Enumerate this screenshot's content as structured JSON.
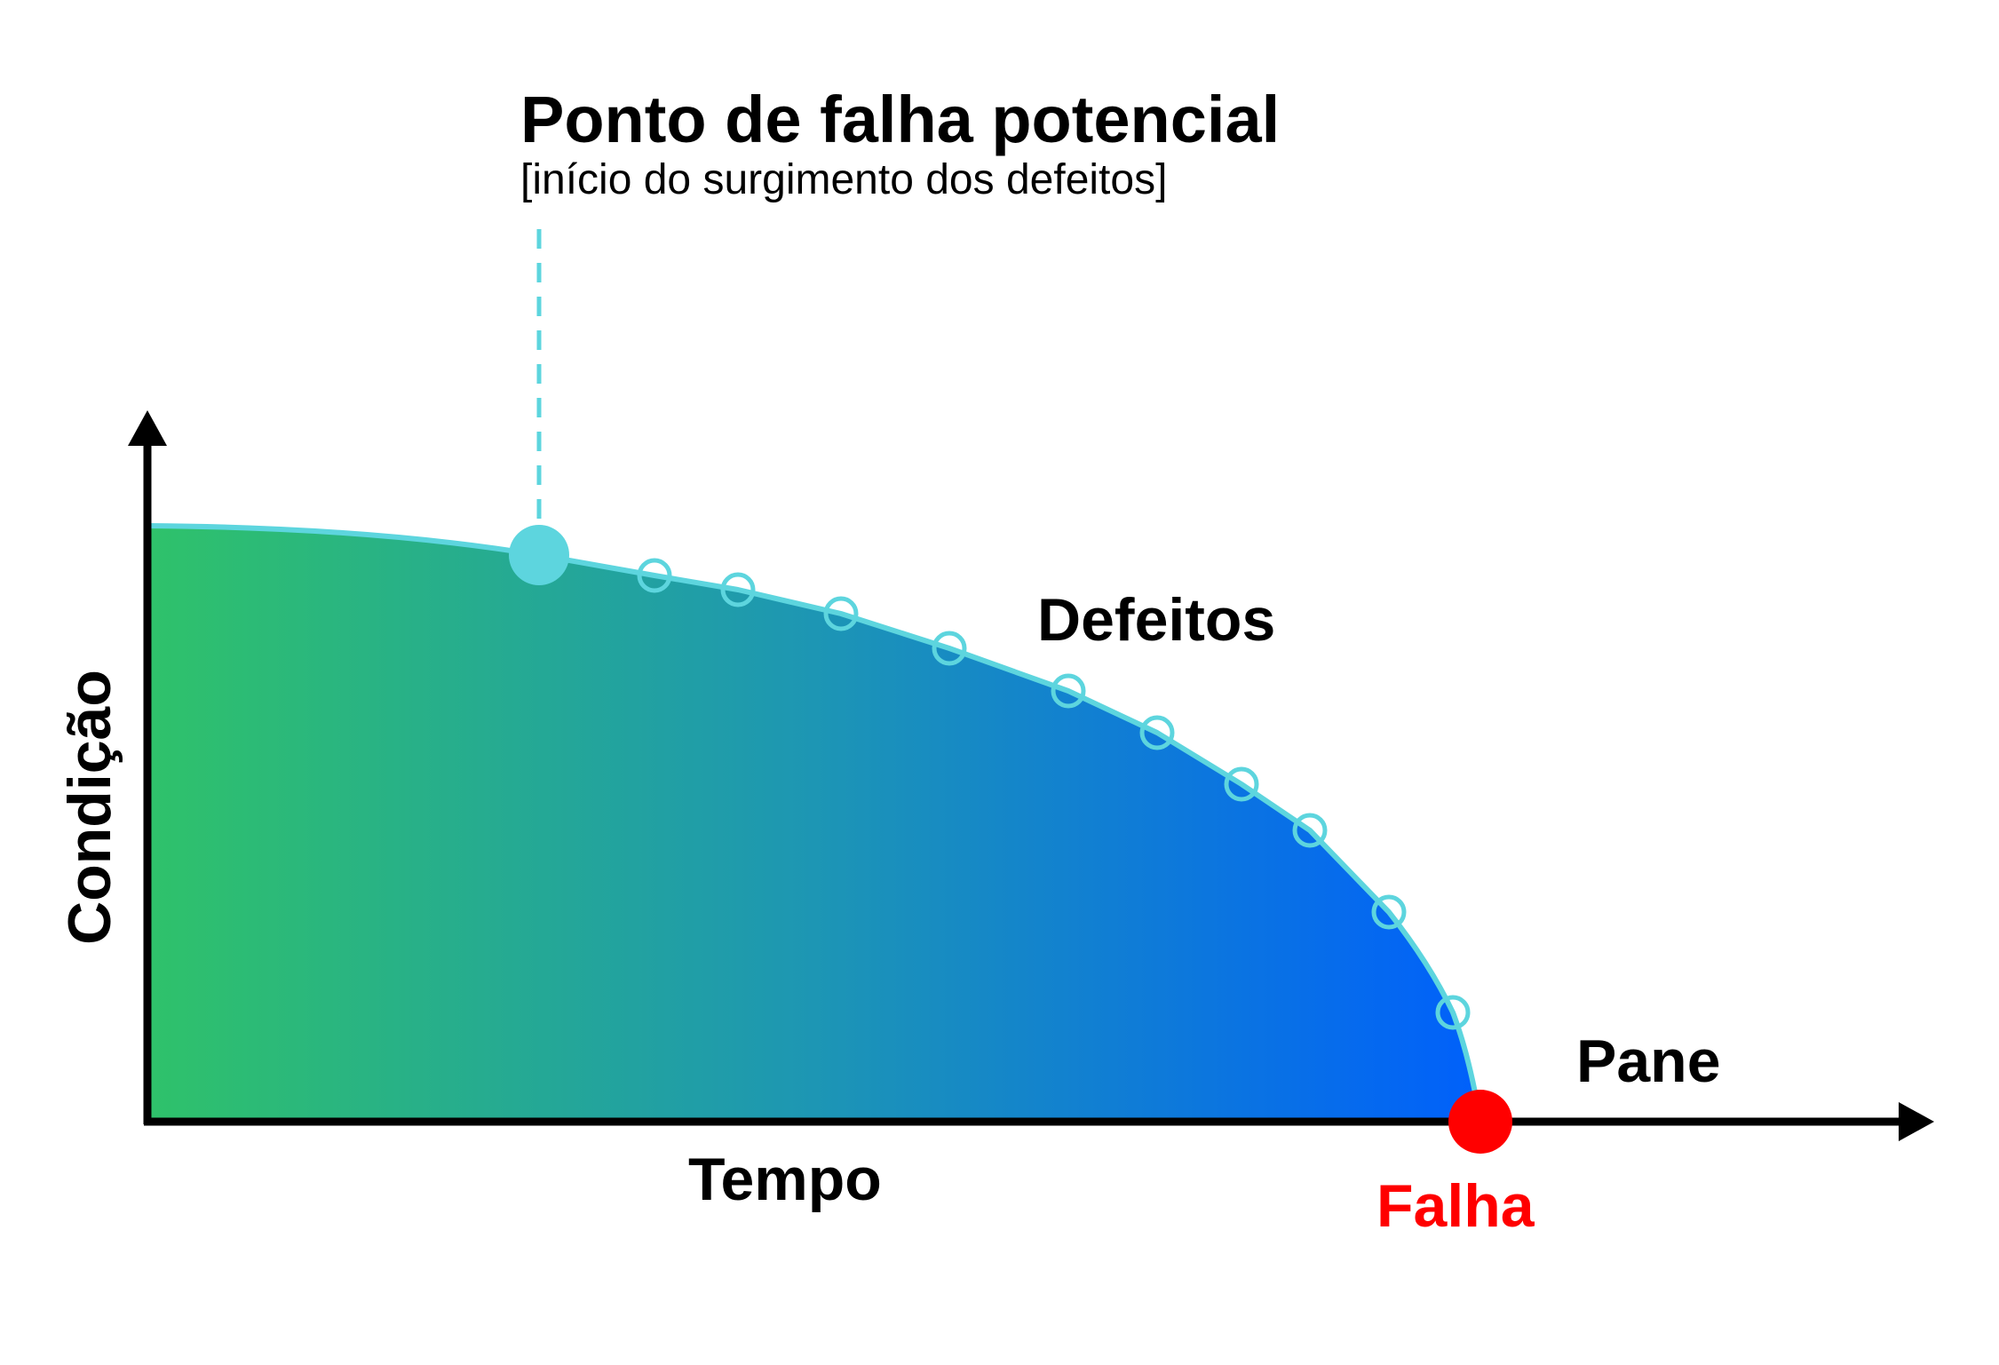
{
  "title": "Ponto de falha potencial",
  "subtitle": "[início do surgimento dos defeitos]",
  "labels": {
    "defects": "Defeitos",
    "breakdown": "Pane",
    "failure": "Falha",
    "x_axis": "Tempo",
    "y_axis": "Condição"
  }
}
